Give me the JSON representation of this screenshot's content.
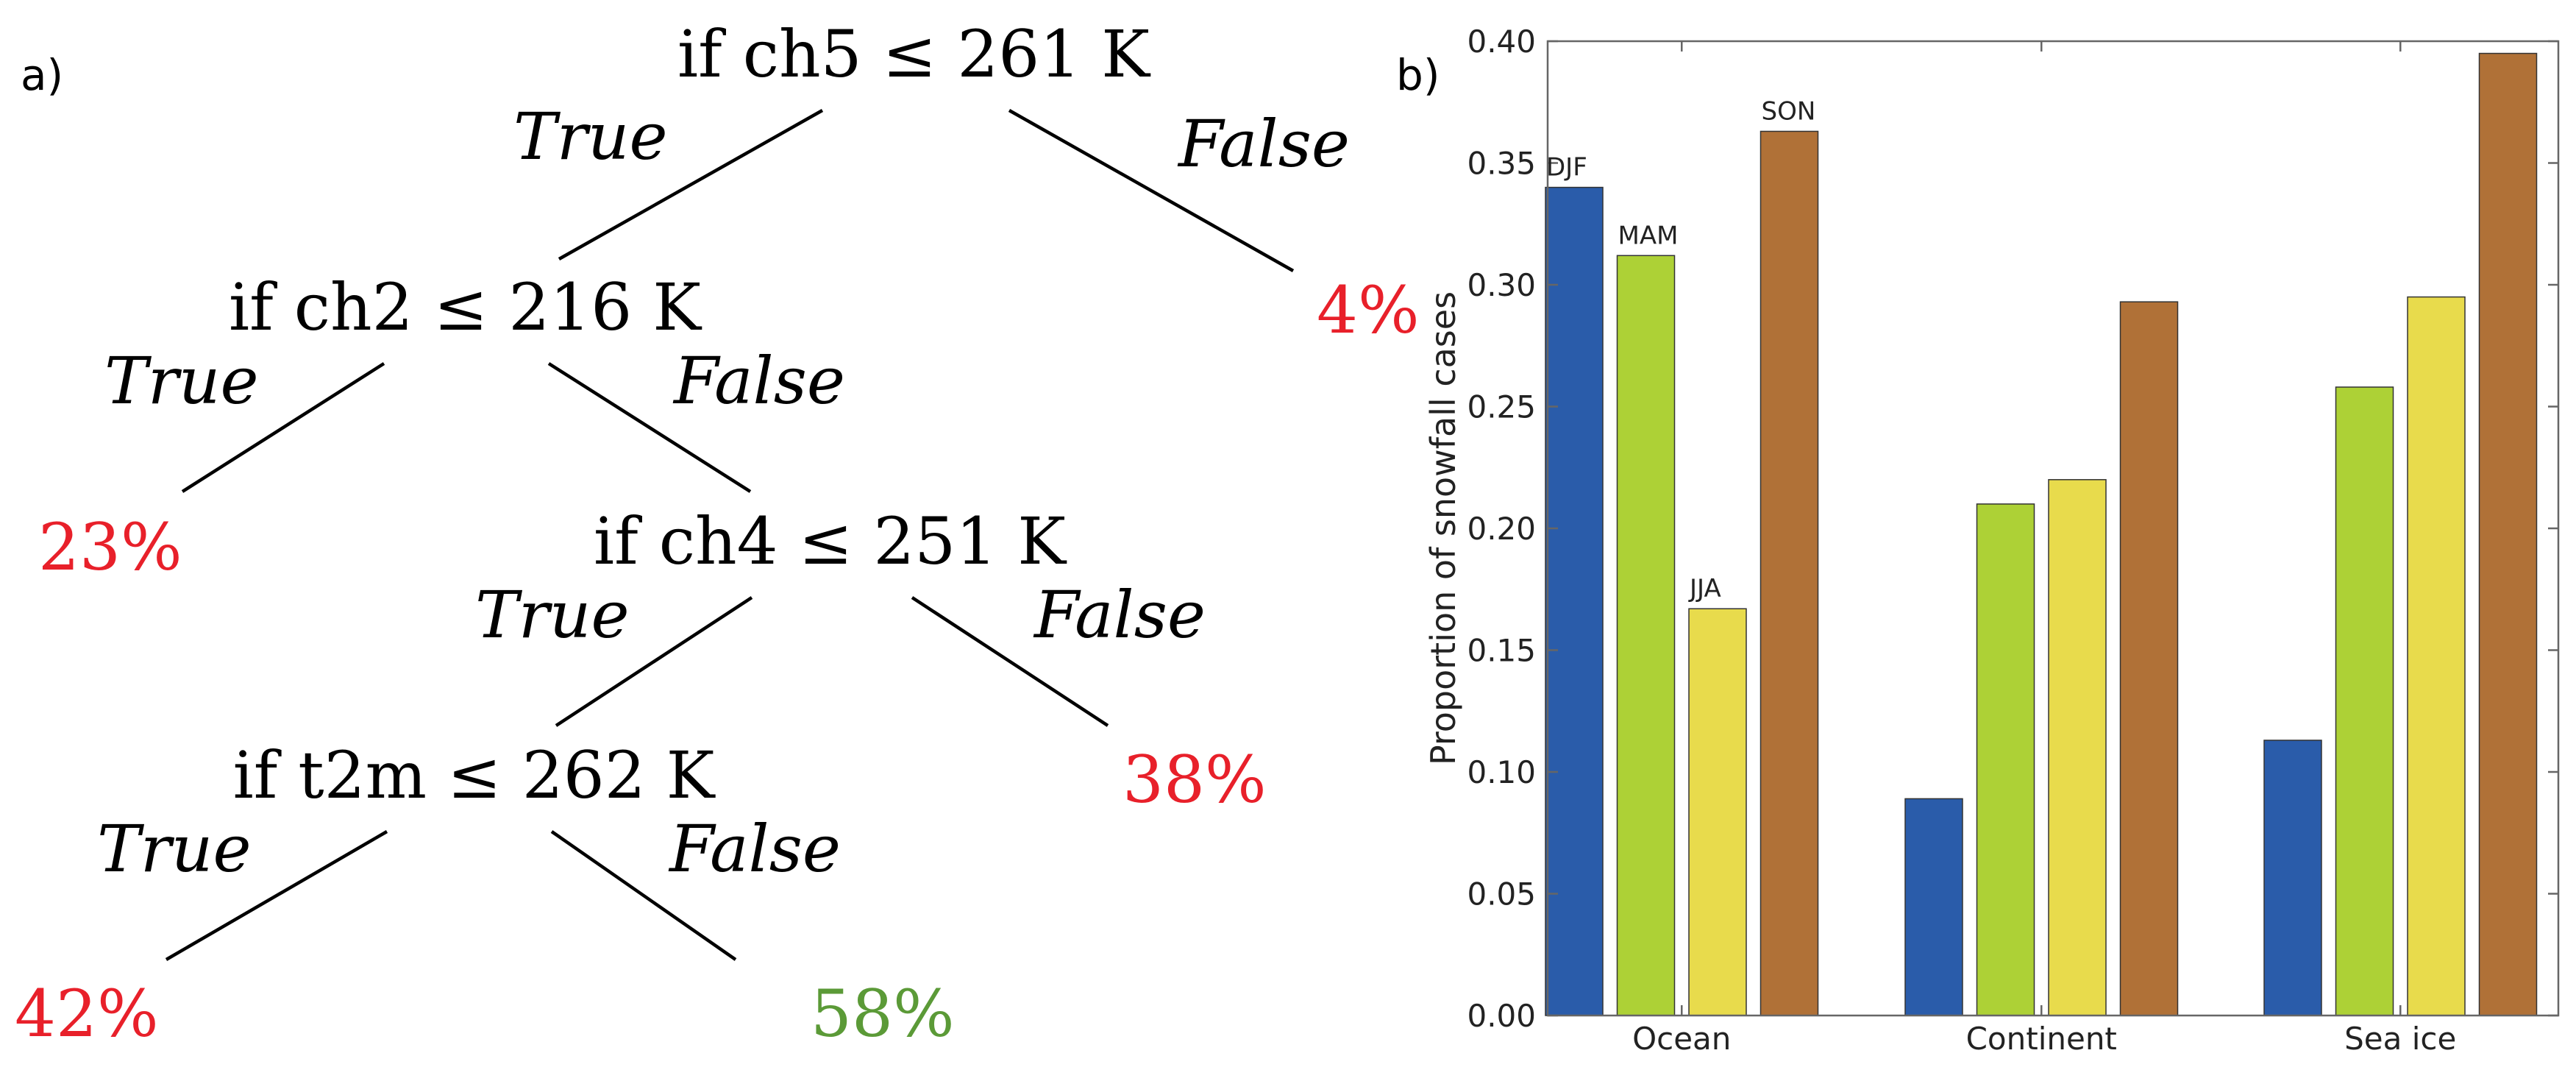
{
  "panel_a": {
    "label": "a)",
    "nodes": {
      "n1": "if ch5 ≤ 261 K",
      "n2": "if ch2 ≤ 216 K",
      "n3": "if ch4 ≤ 251 K",
      "n4": "if t2m ≤ 262 K"
    },
    "branches": {
      "true": "True",
      "false": "False"
    },
    "leaves": {
      "l1": "4%",
      "l2": "23%",
      "l3": "38%",
      "l4": "42%",
      "l5": "58%"
    },
    "colors": {
      "leaf_red": "#e8202a",
      "leaf_green": "#5b9a37",
      "line": "#000000"
    }
  },
  "panel_b": {
    "label": "b)",
    "chart_data": {
      "type": "bar",
      "title": "",
      "xlabel": "",
      "ylabel": "Proportion of snowfall cases",
      "categories": [
        "Ocean",
        "Continent",
        "Sea ice"
      ],
      "series": [
        {
          "name": "DJF",
          "color": "#2a5caa",
          "values": [
            0.34,
            0.089,
            0.113
          ]
        },
        {
          "name": "MAM",
          "color": "#add136",
          "values": [
            0.312,
            0.21,
            0.258
          ]
        },
        {
          "name": "JJA",
          "color": "#e8db4c",
          "values": [
            0.167,
            0.22,
            0.295
          ]
        },
        {
          "name": "SON",
          "color": "#b07137",
          "values": [
            0.363,
            0.293,
            0.395
          ]
        }
      ],
      "ylim": [
        0,
        0.4
      ],
      "yticks": [
        "0.00",
        "0.05",
        "0.10",
        "0.15",
        "0.20",
        "0.25",
        "0.30",
        "0.35",
        "0.40"
      ],
      "grid": false,
      "bar_labels_on_first_category": true
    }
  }
}
